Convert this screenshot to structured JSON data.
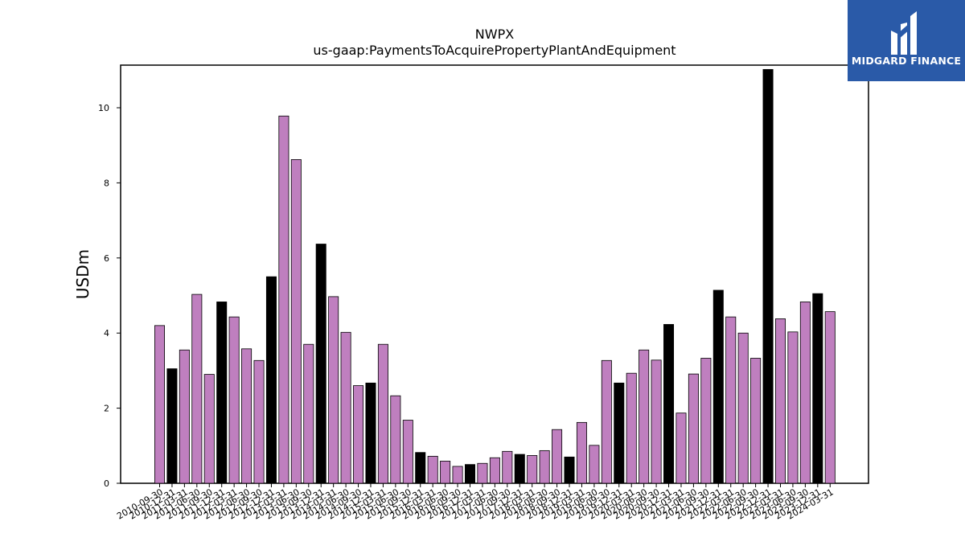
{
  "logo": {
    "text": "MIDGARD FINANCE"
  },
  "chart_data": {
    "type": "bar",
    "title": "NWPX",
    "subtitle": "us-gaap:PaymentsToAcquirePropertyPlantAndEquipment",
    "xlabel": "",
    "ylabel": "USDm",
    "ylim": [
      0,
      11.6
    ],
    "yticks": [
      0,
      2,
      4,
      6,
      8,
      10
    ],
    "grid": false,
    "colors": {
      "quarter": "#bf7fbf",
      "year_end": "#000000",
      "edge": "#000000"
    },
    "categories": [
      "2010-09-30",
      "2010-12-31",
      "2011-03-31",
      "2011-06-30",
      "2011-09-30",
      "2011-12-31",
      "2012-03-31",
      "2012-06-30",
      "2012-09-30",
      "2012-12-31",
      "2013-03-31",
      "2013-06-30",
      "2013-09-30",
      "2013-12-31",
      "2014-03-31",
      "2014-06-30",
      "2014-09-30",
      "2014-12-31",
      "2015-03-31",
      "2015-06-30",
      "2015-09-30",
      "2015-12-31",
      "2016-03-31",
      "2016-06-30",
      "2016-09-30",
      "2016-12-31",
      "2017-03-31",
      "2017-06-30",
      "2017-09-30",
      "2017-12-31",
      "2018-03-31",
      "2018-06-30",
      "2018-09-30",
      "2018-12-31",
      "2019-03-31",
      "2019-06-30",
      "2019-09-30",
      "2019-12-31",
      "2020-03-31",
      "2020-06-30",
      "2020-09-30",
      "2020-12-31",
      "2021-03-31",
      "2021-06-30",
      "2021-09-30",
      "2021-12-31",
      "2022-03-31",
      "2022-06-30",
      "2022-09-30",
      "2022-12-31",
      "2023-03-31",
      "2023-06-30",
      "2023-09-30",
      "2023-12-31",
      "2024-03-31"
    ],
    "values": [
      4.2,
      3.05,
      3.55,
      5.03,
      2.9,
      4.83,
      4.43,
      3.58,
      3.27,
      5.5,
      9.78,
      8.62,
      3.7,
      6.37,
      4.97,
      4.02,
      2.6,
      2.67,
      3.7,
      2.33,
      1.68,
      0.82,
      0.72,
      0.59,
      0.45,
      0.5,
      0.53,
      0.68,
      0.85,
      0.77,
      0.74,
      0.87,
      1.43,
      0.7,
      1.62,
      1.01,
      3.27,
      2.67,
      2.93,
      3.55,
      3.28,
      4.23,
      1.87,
      2.91,
      3.33,
      5.14,
      4.43,
      4.0,
      3.33,
      11.02,
      4.38,
      4.03,
      4.83,
      5.05,
      4.57
    ],
    "year_end": [
      false,
      true,
      false,
      false,
      false,
      true,
      false,
      false,
      false,
      true,
      false,
      false,
      false,
      true,
      false,
      false,
      false,
      true,
      false,
      false,
      false,
      true,
      false,
      false,
      false,
      true,
      false,
      false,
      false,
      true,
      false,
      false,
      false,
      true,
      false,
      false,
      false,
      true,
      false,
      false,
      false,
      true,
      false,
      false,
      false,
      true,
      false,
      false,
      false,
      true,
      false,
      false,
      false,
      true,
      false
    ]
  }
}
